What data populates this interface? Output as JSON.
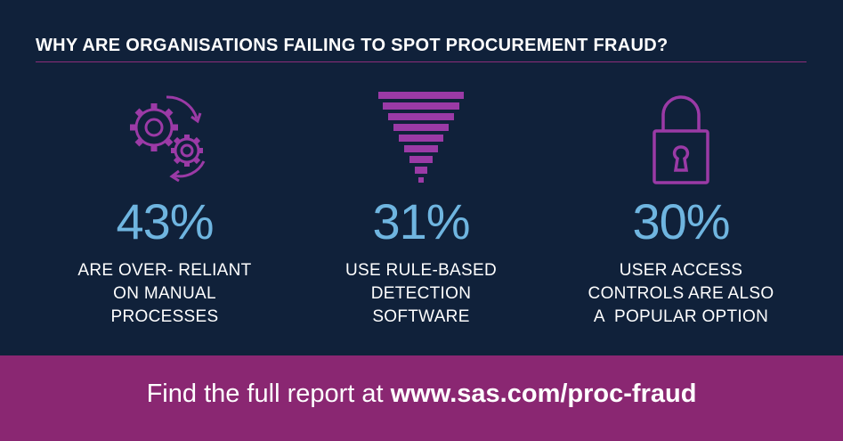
{
  "title": "WHY ARE ORGANISATIONS FAILING TO SPOT PROCUREMENT FRAUD?",
  "stats": [
    {
      "icon": "gears-icon",
      "value": "43%",
      "lines": [
        "ARE OVER- RELIANT",
        "ON MANUAL",
        "PROCESSES"
      ]
    },
    {
      "icon": "funnel-icon",
      "value": "31%",
      "lines": [
        "USE RULE-BASED",
        "DETECTION",
        "SOFTWARE"
      ]
    },
    {
      "icon": "padlock-icon",
      "value": "30%",
      "lines": [
        "USER ACCESS",
        "CONTROLS ARE ALSO",
        "A  POPULAR OPTION"
      ]
    }
  ],
  "footer": {
    "lead": "Find the full report at ",
    "url": "www.sas.com/proc-fraud"
  },
  "colors": {
    "background": "#10213a",
    "accent_purple": "#8a2772",
    "icon_purple": "#9b3aa6",
    "value_blue": "#6fb5e0"
  }
}
